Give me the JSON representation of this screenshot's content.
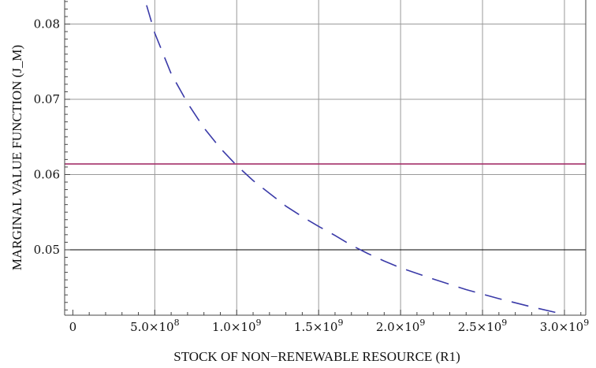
{
  "chart_data": {
    "type": "line",
    "title": "",
    "xlabel": "STOCK OF NON−RENEWABLE RESOURCE (R1)",
    "ylabel": "MARGINAL VALUE FUNCTION (J_M)",
    "xlim": [
      -50000000.0,
      3130000000.0
    ],
    "ylim": [
      0.0413,
      0.0832
    ],
    "grid": true,
    "x_ticks": [
      {
        "value": 0,
        "label": "0"
      },
      {
        "value": 500000000.0,
        "label": "5.0×10",
        "exp": "8"
      },
      {
        "value": 1000000000.0,
        "label": "1.0×10",
        "exp": "9"
      },
      {
        "value": 1500000000.0,
        "label": "1.5×10",
        "exp": "9"
      },
      {
        "value": 2000000000.0,
        "label": "2.0×10",
        "exp": "9"
      },
      {
        "value": 2500000000.0,
        "label": "2.5×10",
        "exp": "9"
      },
      {
        "value": 3000000000.0,
        "label": "3.0×10",
        "exp": "9"
      }
    ],
    "y_ticks": [
      {
        "value": 0.05,
        "label": "0.05"
      },
      {
        "value": 0.06,
        "label": "0.06"
      },
      {
        "value": 0.07,
        "label": "0.07"
      },
      {
        "value": 0.08,
        "label": "0.08"
      }
    ],
    "reference_line_y": 0.05,
    "series": [
      {
        "style": "dashed",
        "color": "#3a3aa8",
        "x": [
          450000000.0,
          500000000.0,
          600000000.0,
          700000000.0,
          800000000.0,
          900000000.0,
          1000000000.0,
          1100000000.0,
          1200000000.0,
          1300000000.0,
          1400000000.0,
          1500000000.0,
          1600000000.0,
          1700000000.0,
          1800000000.0,
          1900000000.0,
          2000000000.0,
          2200000000.0,
          2400000000.0,
          2600000000.0,
          2800000000.0,
          3000000000.0
        ],
        "y": [
          0.0825,
          0.0788,
          0.0734,
          0.0695,
          0.0662,
          0.0635,
          0.0612,
          0.0592,
          0.0575,
          0.0558,
          0.0544,
          0.0531,
          0.0519,
          0.0506,
          0.0495,
          0.0485,
          0.0476,
          0.0461,
          0.0447,
          0.0435,
          0.0424,
          0.0414
        ]
      },
      {
        "style": "solid",
        "color": "#a4306a",
        "x": [
          -50000000.0,
          3130000000.0
        ],
        "y": [
          0.0614,
          0.0614
        ]
      }
    ]
  }
}
